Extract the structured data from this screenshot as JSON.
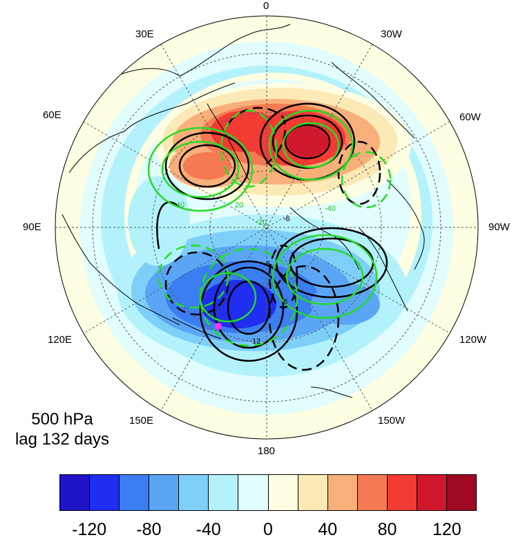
{
  "longitude_labels": {
    "top": "0",
    "top_left": "30E",
    "top_right": "30W",
    "upper_left": "60E",
    "upper_right": "60W",
    "left": "90E",
    "right": "90W",
    "lower_left": "120E",
    "lower_right": "120W",
    "bottom_left": "150E",
    "bottom_right": "150W",
    "bottom": "180"
  },
  "caption": {
    "level": "500 hPa",
    "lag": "lag 132 days"
  },
  "contour_labels": [
    "6",
    "6",
    "12",
    "-6",
    "40",
    "-20",
    "-40",
    "20"
  ],
  "marker": {
    "color": "#ff33ff"
  },
  "colorbar": {
    "colors": [
      "#2013c8",
      "#1f2ef0",
      "#3b7ef2",
      "#5aa6f5",
      "#7ecff8",
      "#b3f2fb",
      "#e1fdfd",
      "#fefee2",
      "#fbeab6",
      "#f8b07a",
      "#f57a54",
      "#f33b34",
      "#d1172b",
      "#9f0a22"
    ],
    "tick_labels": [
      "-120",
      "-80",
      "-40",
      "0",
      "40",
      "80",
      "120"
    ]
  },
  "colors": {
    "positive_contour": "#000000",
    "green_contour": "#22dd22",
    "graticule": "#555555"
  }
}
